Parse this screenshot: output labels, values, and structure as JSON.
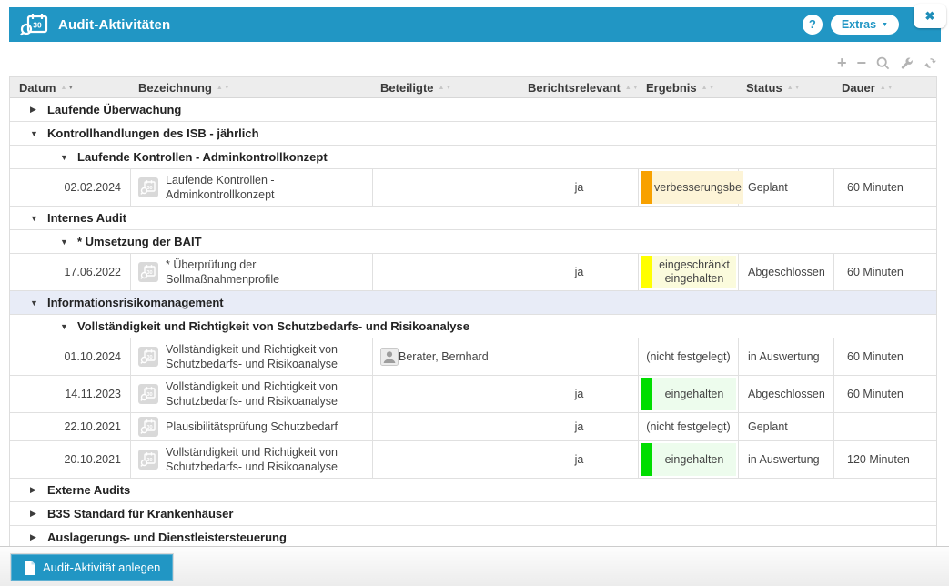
{
  "window": {
    "title": "Audit-Aktivitäten",
    "help_label": "?",
    "extras_label": "Extras",
    "close_glyph": "✖"
  },
  "toolbar": {
    "add_glyph": "+",
    "remove_glyph": "−"
  },
  "table": {
    "columns": [
      {
        "key": "datum",
        "label": "Datum",
        "sort": "desc"
      },
      {
        "key": "bez",
        "label": "Bezeichnung",
        "sort": "none"
      },
      {
        "key": "bet",
        "label": "Beteiligte",
        "sort": "none"
      },
      {
        "key": "ber",
        "label": "Berichtsrelevant",
        "sort": "none"
      },
      {
        "key": "erg",
        "label": "Ergebnis",
        "sort": "none"
      },
      {
        "key": "status",
        "label": "Status",
        "sort": "none"
      },
      {
        "key": "dauer",
        "label": "Dauer",
        "sort": "none"
      }
    ],
    "rows": [
      {
        "type": "group",
        "level": 1,
        "expanded": false,
        "selected": false,
        "label": "Laufende Überwachung"
      },
      {
        "type": "group",
        "level": 1,
        "expanded": true,
        "selected": false,
        "label": "Kontrollhandlungen des ISB - jährlich"
      },
      {
        "type": "group",
        "level": 2,
        "expanded": true,
        "selected": false,
        "label": "Laufende Kontrollen - Adminkontrollkonzept"
      },
      {
        "type": "data",
        "datum": "02.02.2024",
        "bezeichnung": "Laufende Kontrollen - Adminkontrollkonzept",
        "beteiligte": "",
        "berichtsrelevant": "ja",
        "ergebnis": {
          "text": "verbesserungsbe",
          "variant": "orange"
        },
        "status": "Geplant",
        "dauer": "60 Minuten"
      },
      {
        "type": "group",
        "level": 1,
        "expanded": true,
        "selected": false,
        "label": "Internes Audit"
      },
      {
        "type": "group",
        "level": 2,
        "expanded": true,
        "selected": false,
        "label": "* Umsetzung der BAIT"
      },
      {
        "type": "data",
        "datum": "17.06.2022",
        "bezeichnung": "* Überprüfung der Sollmaßnahmenprofile",
        "beteiligte": "",
        "berichtsrelevant": "ja",
        "ergebnis": {
          "text": "eingeschränkt eingehalten",
          "variant": "yellow"
        },
        "status": "Abgeschlossen",
        "dauer": "60 Minuten"
      },
      {
        "type": "group",
        "level": 1,
        "expanded": true,
        "selected": true,
        "label": "Informationsrisikomanagement"
      },
      {
        "type": "group",
        "level": 2,
        "expanded": true,
        "selected": false,
        "label": "Vollständigkeit und Richtigkeit von Schutzbedarfs- und Risikoanalyse"
      },
      {
        "type": "data",
        "datum": "01.10.2024",
        "bezeichnung": "Vollständigkeit und Richtigkeit von Schutzbedarfs- und Risikoanalyse",
        "beteiligte": "Berater, Bernhard",
        "berichtsrelevant": "",
        "ergebnis": {
          "text": "(nicht festgelegt)",
          "variant": "none"
        },
        "status": "in Auswertung",
        "dauer": "60 Minuten"
      },
      {
        "type": "data",
        "datum": "14.11.2023",
        "bezeichnung": "Vollständigkeit und Richtigkeit von Schutzbedarfs- und Risikoanalyse",
        "beteiligte": "",
        "berichtsrelevant": "ja",
        "ergebnis": {
          "text": "eingehalten",
          "variant": "green"
        },
        "status": "Abgeschlossen",
        "dauer": "60 Minuten"
      },
      {
        "type": "data",
        "datum": "22.10.2021",
        "bezeichnung": "Plausibilitätsprüfung Schutzbedarf",
        "beteiligte": "",
        "berichtsrelevant": "ja",
        "ergebnis": {
          "text": "(nicht festgelegt)",
          "variant": "none"
        },
        "status": "Geplant",
        "dauer": ""
      },
      {
        "type": "data",
        "datum": "20.10.2021",
        "bezeichnung": "Vollständigkeit und Richtigkeit von Schutzbedarfs- und Risikoanalyse",
        "beteiligte": "",
        "berichtsrelevant": "ja",
        "ergebnis": {
          "text": "eingehalten",
          "variant": "green"
        },
        "status": "in Auswertung",
        "dauer": "120 Minuten"
      },
      {
        "type": "group",
        "level": 1,
        "expanded": false,
        "selected": false,
        "label": "Externe Audits"
      },
      {
        "type": "group",
        "level": 1,
        "expanded": false,
        "selected": false,
        "label": "B3S Standard für Krankenhäuser"
      },
      {
        "type": "group",
        "level": 1,
        "expanded": false,
        "selected": false,
        "label": "Auslagerungs- und Dienstleistersteuerung"
      }
    ]
  },
  "footer": {
    "create_button": "Audit-Aktivität anlegen"
  },
  "colors": {
    "accent": "#2196c4",
    "selected_row": "#e8ecf7",
    "badge_orange_bar": "#f8a100",
    "badge_orange_bg": "#fdf4d7",
    "badge_yellow_bar": "#ffff00",
    "badge_yellow_bg": "#fbfbdc",
    "badge_green_bar": "#00dd00",
    "badge_green_bg": "#edfced"
  }
}
